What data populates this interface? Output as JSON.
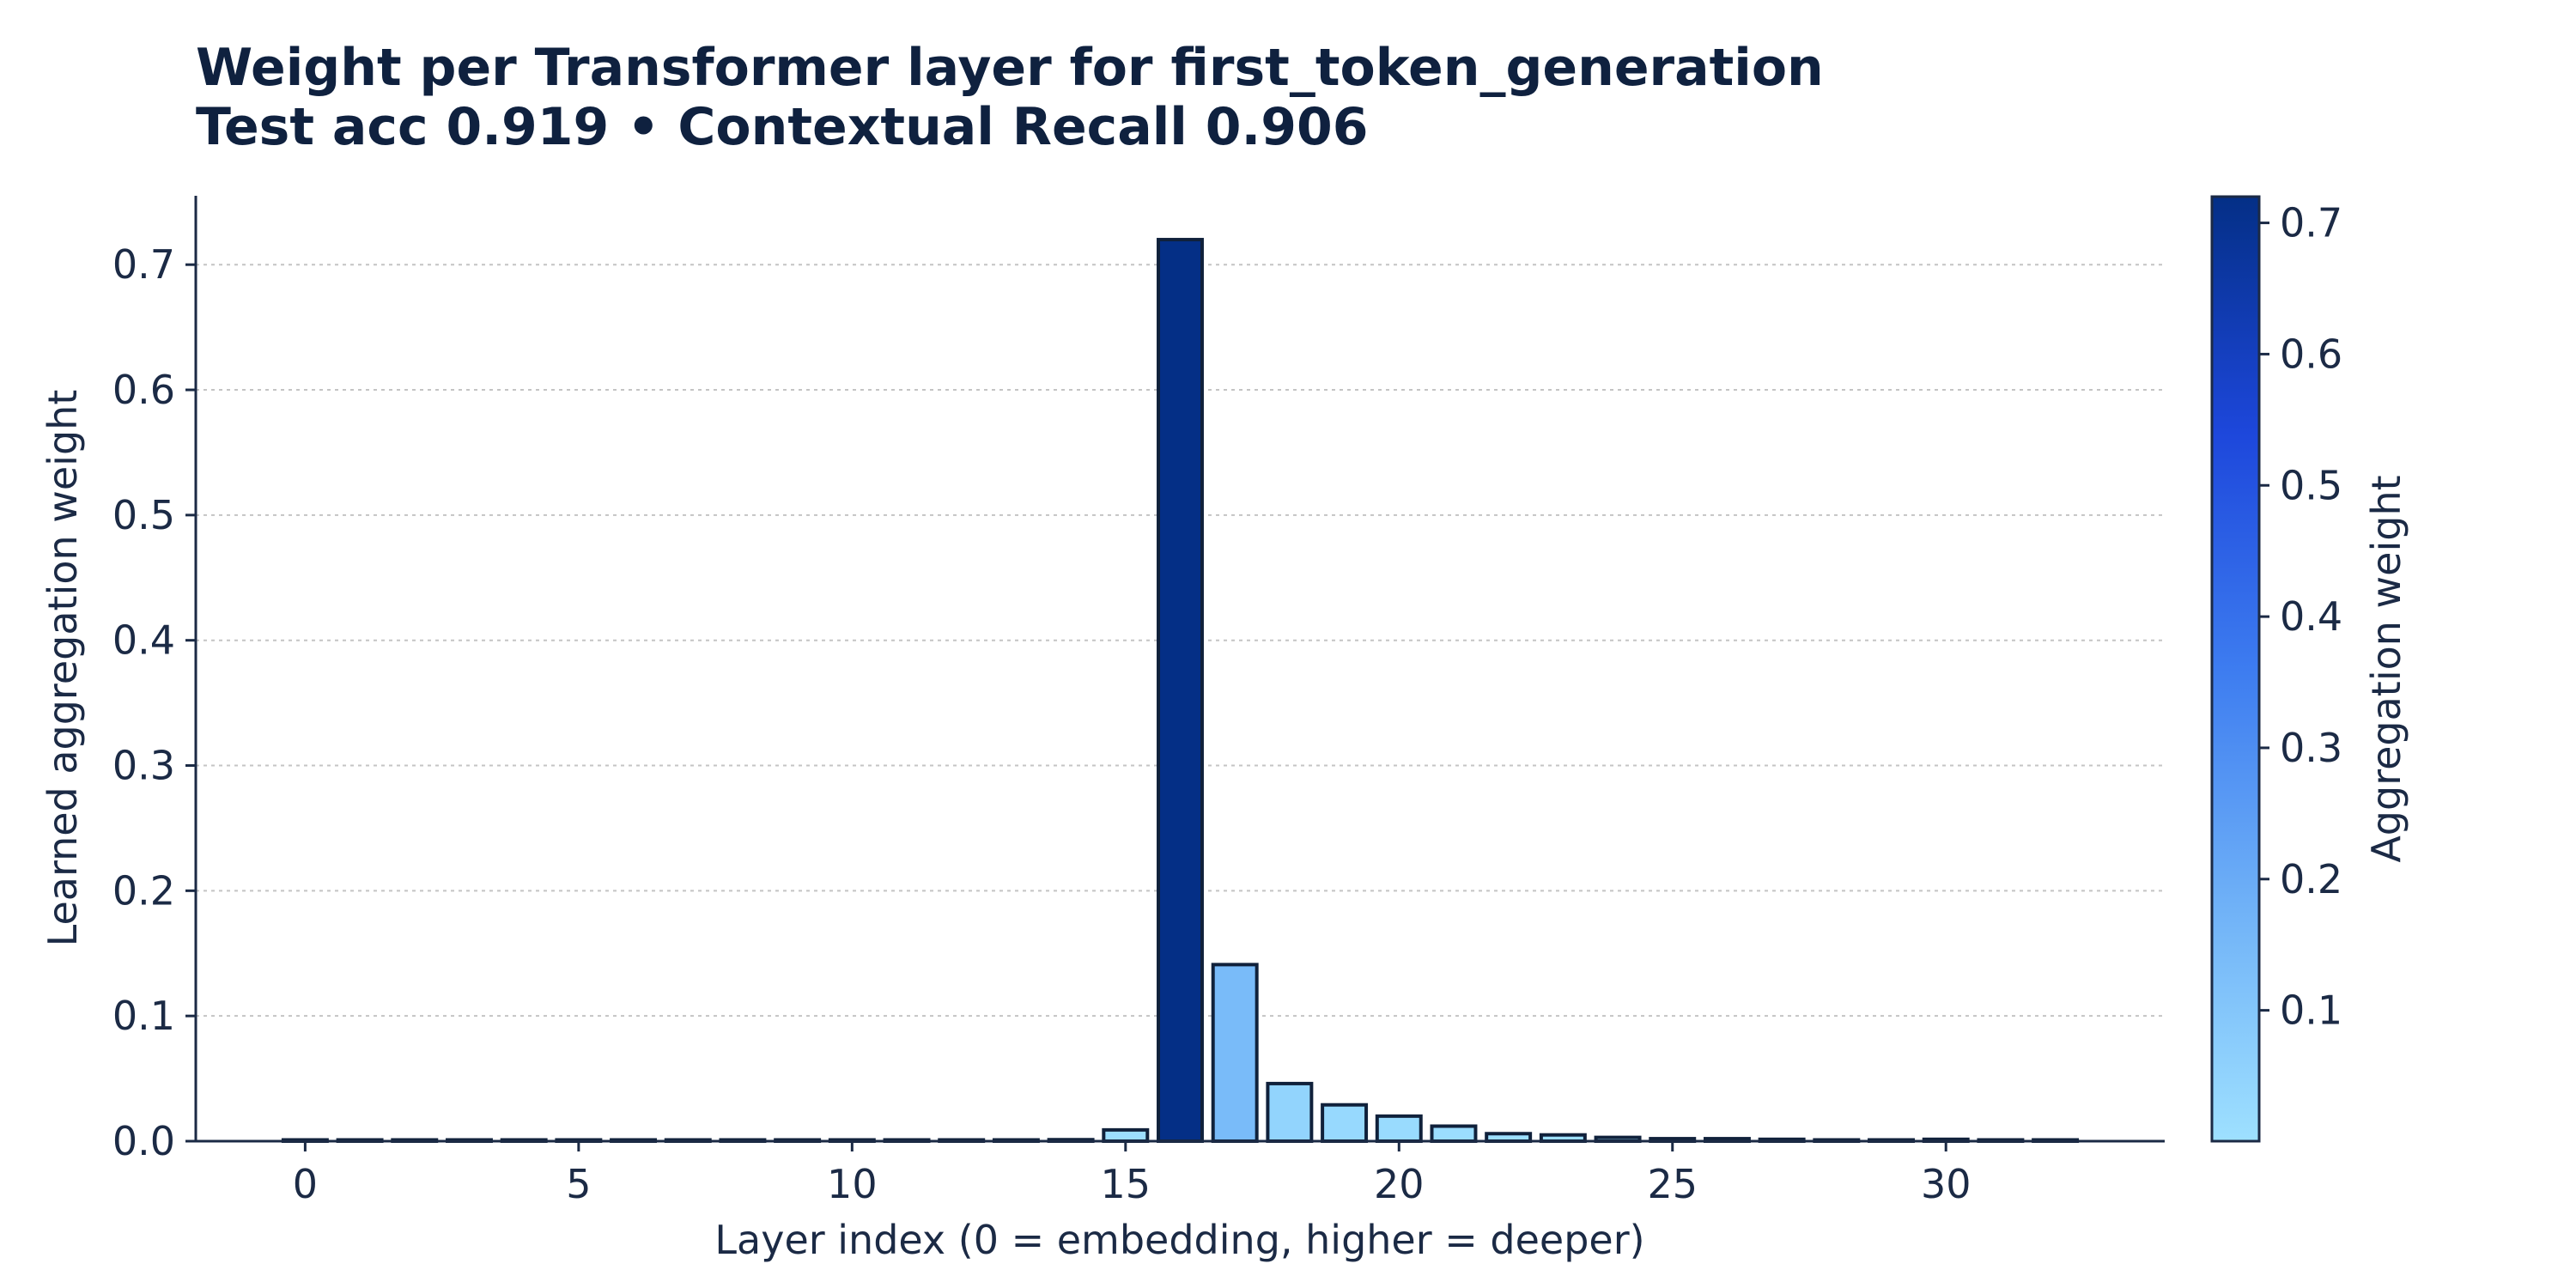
{
  "chart_data": {
    "type": "bar",
    "title": "Weight per Transformer layer for first_token_generation",
    "subtitle": "Test acc 0.919 • Contextual Recall 0.906",
    "xlabel": "Layer index (0 = embedding, higher = deeper)",
    "ylabel": "Learned aggregation weight",
    "x": [
      0,
      1,
      2,
      3,
      4,
      5,
      6,
      7,
      8,
      9,
      10,
      11,
      12,
      13,
      14,
      15,
      16,
      17,
      18,
      19,
      20,
      21,
      22,
      23,
      24,
      25,
      26,
      27,
      28,
      29,
      30,
      31,
      32
    ],
    "values": [
      0.0003,
      0.0003,
      0.0003,
      0.0003,
      0.0003,
      0.0003,
      0.0003,
      0.0003,
      0.0003,
      0.0003,
      0.0003,
      0.0003,
      0.0003,
      0.0004,
      0.0012,
      0.009,
      0.72,
      0.141,
      0.046,
      0.029,
      0.02,
      0.012,
      0.006,
      0.005,
      0.003,
      0.002,
      0.002,
      0.0015,
      0.001,
      0.001,
      0.0015,
      0.001,
      0.0005
    ],
    "xlim": [
      -2,
      34
    ],
    "ylim": [
      0,
      0.755
    ],
    "x_ticks": [
      "0",
      "5",
      "10",
      "15",
      "20",
      "25",
      "30"
    ],
    "y_ticks": [
      "0.0",
      "0.1",
      "0.2",
      "0.3",
      "0.4",
      "0.5",
      "0.6",
      "0.7"
    ],
    "grid": "horizontal dotted",
    "colorbar": {
      "label": "Aggregation weight",
      "range": [
        0.0003,
        0.72
      ],
      "ticks": [
        "0.1",
        "0.2",
        "0.3",
        "0.4",
        "0.5",
        "0.6",
        "0.7"
      ],
      "colors": [
        "#9ee0ff",
        "#6fb1f7",
        "#3d7cf0",
        "#1d47db",
        "#042f86"
      ]
    }
  }
}
